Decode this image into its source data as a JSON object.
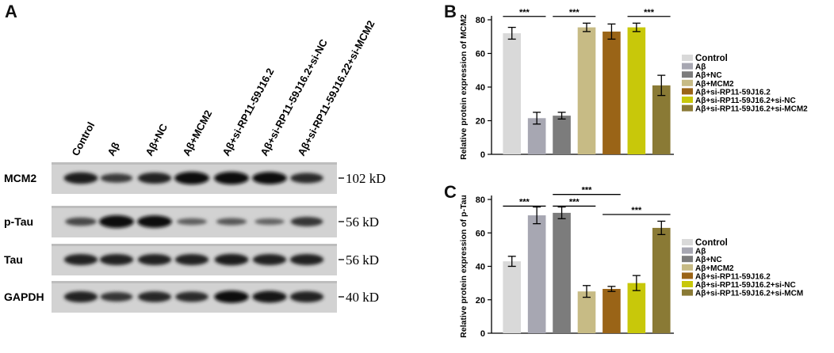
{
  "panel_labels": {
    "a": "A",
    "b": "B",
    "c": "C"
  },
  "blot": {
    "lanes": [
      "Control",
      "Aβ",
      "Aβ+NC",
      "Aβ+MCM2",
      "Aβ+si-RP11-59J16.2",
      "Aβ+si-RP11-59J16.2+si-NC",
      "Aβ+si-RP11-59J16.22+si-MCM2"
    ],
    "rows": [
      {
        "name": "MCM2",
        "marker": "102 kD",
        "intensity": [
          0.85,
          0.55,
          0.8,
          1.0,
          1.0,
          0.95,
          0.7
        ]
      },
      {
        "name": "p-Tau",
        "marker": "56 kD",
        "intensity": [
          0.45,
          1.0,
          0.95,
          0.25,
          0.3,
          0.2,
          0.6
        ]
      },
      {
        "name": "Tau",
        "marker": "56 kD",
        "intensity": [
          0.8,
          0.8,
          0.8,
          0.8,
          0.85,
          0.8,
          0.8
        ]
      },
      {
        "name": "GAPDH",
        "marker": "40 kD",
        "intensity": [
          0.8,
          0.6,
          0.75,
          0.7,
          0.95,
          0.9,
          0.8
        ]
      }
    ]
  },
  "colors": [
    "#d9d9d9",
    "#a7a7b2",
    "#7c7c7c",
    "#c7bb85",
    "#9a6417",
    "#c8c80a",
    "#8a7a35"
  ],
  "chart_data": [
    {
      "type": "bar",
      "ylabel": "Relative protein expression of MCM2",
      "ylim": [
        0,
        80
      ],
      "yticks": [
        0,
        20,
        40,
        60,
        80
      ],
      "categories": [
        "Control",
        "Aβ",
        "Aβ+NC",
        "Aβ+MCM2",
        "Aβ+si-RP11-59J16.2",
        "Aβ+si-RP11-59J16.2+si-NC",
        "Aβ+si-RP11-59J16.2+si-MCM2"
      ],
      "values": [
        72,
        21.5,
        23,
        75.5,
        73,
        75.5,
        41
      ],
      "errors": [
        3.5,
        3.5,
        2,
        2.5,
        4.5,
        2.5,
        6
      ],
      "significance": [
        {
          "from": 0,
          "to": 1,
          "label": "***",
          "y": 82
        },
        {
          "from": 1,
          "to": 4,
          "label": "***",
          "y": 93
        },
        {
          "from": 2,
          "to": 3,
          "label": "***",
          "y": 82
        },
        {
          "from": 5,
          "to": 6,
          "label": "***",
          "y": 82
        }
      ],
      "legend": [
        "Control",
        "Aβ",
        "Aβ+NC",
        "Aβ+MCM2",
        "Aβ+si-RP11-59J16.2",
        "Aβ+si-RP11-59J16.2+si-NC",
        "Aβ+si-RP11-59J16.2+si-MCM2"
      ]
    },
    {
      "type": "bar",
      "ylabel": "Relative protein expression of p-Tau",
      "ylim": [
        0,
        80
      ],
      "yticks": [
        0,
        20,
        40,
        60,
        80
      ],
      "categories": [
        "Control",
        "Aβ",
        "Aβ+NC",
        "Aβ+MCM2",
        "Aβ+si-RP11-59J16.2",
        "Aβ+si-RP11-59J16.2+si-NC",
        "Aβ+si-RP11-59J16.2+si-MCM2"
      ],
      "values": [
        43,
        70.5,
        72,
        25,
        26.5,
        30,
        63
      ],
      "errors": [
        3,
        5,
        3.5,
        3.5,
        1.5,
        4.5,
        4
      ],
      "significance": [
        {
          "from": 0,
          "to": 1,
          "label": "***",
          "y": 76
        },
        {
          "from": 2,
          "to": 3,
          "label": "***",
          "y": 76
        },
        {
          "from": 2,
          "to": 4,
          "label": "***",
          "y": 83
        },
        {
          "from": 4,
          "to": 6,
          "label": "***",
          "y": 71
        }
      ],
      "legend": [
        "Control",
        "Aβ",
        "Aβ+NC",
        "Aβ+MCM2",
        "Aβ+si-RP11-59J16.2",
        "Aβ+si-RP11-59J16.2+si-NC",
        "Aβ+si-RP11-59J16.2+si-MCM"
      ]
    }
  ]
}
